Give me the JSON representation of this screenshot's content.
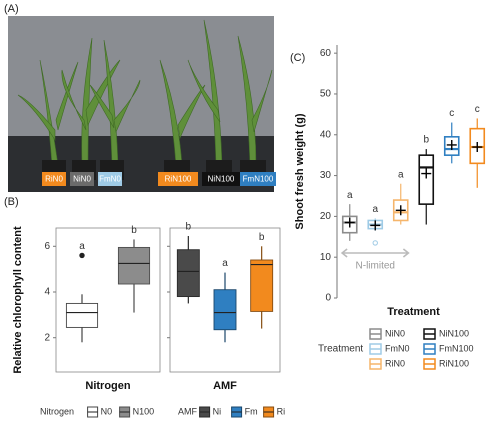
{
  "panels": {
    "a": "(A)",
    "b": "(B)",
    "c": "(C)"
  },
  "photo": {
    "labels": [
      {
        "text": "RiN0",
        "color": "#f28a1e"
      },
      {
        "text": "NiN0",
        "color": "#6b6b6b"
      },
      {
        "text": "FmN0",
        "color": "#9fcbe6"
      },
      {
        "text": "RiN100",
        "color": "#f28a1e"
      },
      {
        "text": "NiN100",
        "color": "#111111"
      },
      {
        "text": "FmN100",
        "color": "#2f7fc1"
      }
    ]
  },
  "chart_data": [
    {
      "type": "box",
      "x_label": "Nitrogen",
      "y_label": "Relative chlorophyll content",
      "ylim": [
        0.5,
        6.8
      ],
      "yticks": [
        2,
        4,
        6
      ],
      "box_style": "filled",
      "legend_title": "Nitrogen",
      "series": [
        {
          "name": "N0",
          "color": "#ffffff",
          "min": 1.8,
          "q1": 2.45,
          "median": 3.1,
          "q3": 3.5,
          "max": 3.9,
          "outliers": [
            5.6
          ],
          "letter": "a"
        },
        {
          "name": "N100",
          "color": "#8c8c8c",
          "min": 3.1,
          "q1": 4.35,
          "median": 5.25,
          "q3": 5.95,
          "max": 6.3,
          "outliers": [],
          "letter": "b"
        }
      ]
    },
    {
      "type": "box",
      "x_label": "AMF",
      "ylim": [
        0.5,
        6.8
      ],
      "yticks": [
        2,
        4,
        6
      ],
      "box_style": "filled",
      "legend_title": "AMF",
      "series": [
        {
          "name": "Ni",
          "color": "#4a4a4a",
          "min": 3.5,
          "q1": 3.8,
          "median": 4.9,
          "q3": 5.85,
          "max": 6.45,
          "outliers": [],
          "letter": "b"
        },
        {
          "name": "Fm",
          "color": "#2f7fc1",
          "min": 1.8,
          "q1": 2.35,
          "median": 3.1,
          "q3": 4.1,
          "max": 4.85,
          "outliers": [],
          "letter": "a"
        },
        {
          "name": "Ri",
          "color": "#f28a1e",
          "min": 2.4,
          "q1": 3.15,
          "median": 5.2,
          "q3": 5.4,
          "max": 6.0,
          "outliers": [],
          "letter": "b"
        }
      ]
    },
    {
      "type": "box",
      "x_label": "Treatment",
      "y_label": "Shoot fresh weight (g)",
      "ylim": [
        0,
        62
      ],
      "yticks": [
        0,
        10,
        20,
        30,
        40,
        50,
        60
      ],
      "box_style": "outlined",
      "legend_title": "Treatment",
      "annotation": "N-limited",
      "series": [
        {
          "name": "NiN0",
          "color": "#8c8c8c",
          "min": 14,
          "q1": 16,
          "median": 18.5,
          "q3": 20,
          "max": 23,
          "mean": 18.5,
          "outliers": [],
          "letter": "a"
        },
        {
          "name": "FmN0",
          "color": "#9fcbe6",
          "min": 16.5,
          "q1": 17,
          "median": 18,
          "q3": 19,
          "max": 19.5,
          "mean": 17.8,
          "outliers": [
            13.5
          ],
          "letter": "a"
        },
        {
          "name": "RiN0",
          "color": "#f5b56b",
          "min": 18,
          "q1": 19,
          "median": 21,
          "q3": 24,
          "max": 28,
          "mean": 21.5,
          "outliers": [],
          "letter": "a"
        },
        {
          "name": "NiN100",
          "color": "#111111",
          "min": 18,
          "q1": 23,
          "median": 32,
          "q3": 35,
          "max": 36.5,
          "mean": 30.5,
          "outliers": [],
          "letter": "b"
        },
        {
          "name": "FmN100",
          "color": "#2f7fc1",
          "min": 33,
          "q1": 35,
          "median": 36.5,
          "q3": 39.5,
          "max": 43,
          "mean": 37.5,
          "outliers": [],
          "letter": "c"
        },
        {
          "name": "RiN100",
          "color": "#f28a1e",
          "min": 27,
          "q1": 33,
          "median": 37,
          "q3": 41.5,
          "max": 44,
          "mean": 37,
          "outliers": [],
          "letter": "c"
        }
      ]
    }
  ]
}
